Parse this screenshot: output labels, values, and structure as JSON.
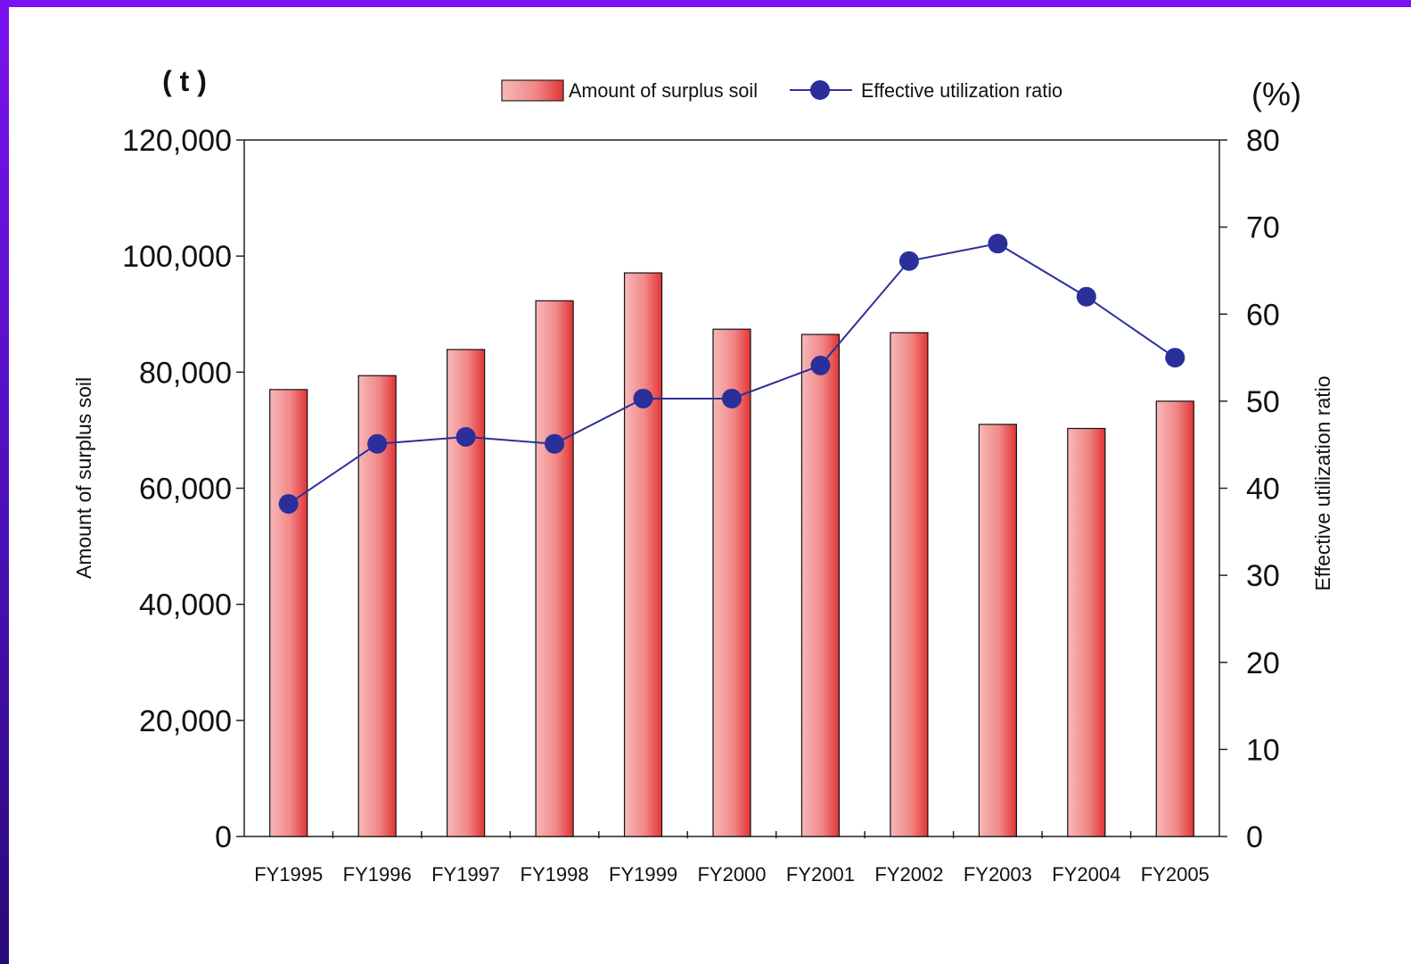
{
  "chart_data": {
    "type": "bar+line",
    "categories": [
      "FY1995",
      "FY1996",
      "FY1997",
      "FY1998",
      "FY1999",
      "FY2000",
      "FY2001",
      "FY2002",
      "FY2003",
      "FY2004",
      "FY2005"
    ],
    "series": [
      {
        "name": "Amount of surplus soil",
        "type": "bar",
        "axis": "left",
        "values": [
          77000,
          79400,
          83900,
          92300,
          97100,
          87400,
          86500,
          86800,
          71000,
          70300,
          75000
        ],
        "color": "#e63a3a"
      },
      {
        "name": "Effective utilization ratio",
        "type": "line",
        "axis": "right",
        "values": [
          38.2,
          45.1,
          45.9,
          45.1,
          50.3,
          50.3,
          54.1,
          66.1,
          68.1,
          62.0,
          55.0
        ],
        "color": "#2b2f9a"
      }
    ],
    "y_left": {
      "label": "Amount of surplus soil",
      "unit": "( t )",
      "lim": [
        0,
        120000
      ],
      "ticks": [
        "0",
        "20,000",
        "40,000",
        "60,000",
        "80,000",
        "100,000",
        "120,000"
      ]
    },
    "y_right": {
      "label": "Effective utilization ratio",
      "unit": "(%)",
      "lim": [
        0,
        80
      ],
      "ticks": [
        "0",
        "10",
        "20",
        "30",
        "40",
        "50",
        "60",
        "70",
        "80"
      ]
    },
    "legend_placement": "top-center",
    "grid": false
  }
}
